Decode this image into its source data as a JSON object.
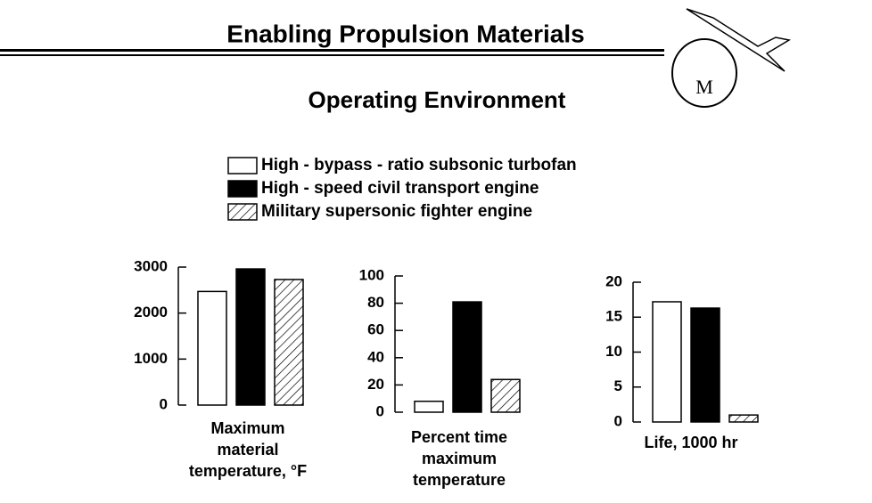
{
  "header": {
    "title": "Enabling Propulsion Materials",
    "subtitle": "Operating Environment"
  },
  "chart_data": [
    {
      "type": "bar",
      "xlabel": [
        "Maximum",
        "material",
        "temperature, °F"
      ],
      "series": [
        {
          "name": "High - bypass - ratio subsonic turbofan",
          "color": "#ffffff",
          "hatch": false,
          "values": [
            2470
          ]
        },
        {
          "name": "High - speed civil transport engine",
          "color": "#000000",
          "hatch": false,
          "values": [
            2960
          ]
        },
        {
          "name": "Military supersonic fighter engine",
          "color": "#ffffff",
          "hatch": true,
          "values": [
            2730
          ]
        }
      ],
      "ylim": [
        0,
        3000
      ],
      "yticks": [
        0,
        1000,
        2000,
        3000
      ]
    },
    {
      "type": "bar",
      "xlabel": [
        "Percent time",
        "maximum",
        "temperature"
      ],
      "series": [
        {
          "name": "High - bypass - ratio subsonic turbofan",
          "color": "#ffffff",
          "hatch": false,
          "values": [
            8
          ]
        },
        {
          "name": "High - speed civil transport engine",
          "color": "#000000",
          "hatch": false,
          "values": [
            81
          ]
        },
        {
          "name": "Military supersonic fighter engine",
          "color": "#ffffff",
          "hatch": true,
          "values": [
            24
          ]
        }
      ],
      "ylim": [
        0,
        100
      ],
      "yticks": [
        0,
        20,
        40,
        60,
        80,
        100
      ]
    },
    {
      "type": "bar",
      "xlabel": [
        "Life, 1000 hr"
      ],
      "series": [
        {
          "name": "High - bypass - ratio subsonic turbofan",
          "color": "#ffffff",
          "hatch": false,
          "values": [
            17.2
          ]
        },
        {
          "name": "High - speed civil transport engine",
          "color": "#000000",
          "hatch": false,
          "values": [
            16.3
          ]
        },
        {
          "name": "Military supersonic fighter engine",
          "color": "#ffffff",
          "hatch": true,
          "values": [
            1
          ]
        }
      ],
      "ylim": [
        0,
        20
      ],
      "yticks": [
        0,
        5,
        10,
        15,
        20
      ]
    }
  ]
}
